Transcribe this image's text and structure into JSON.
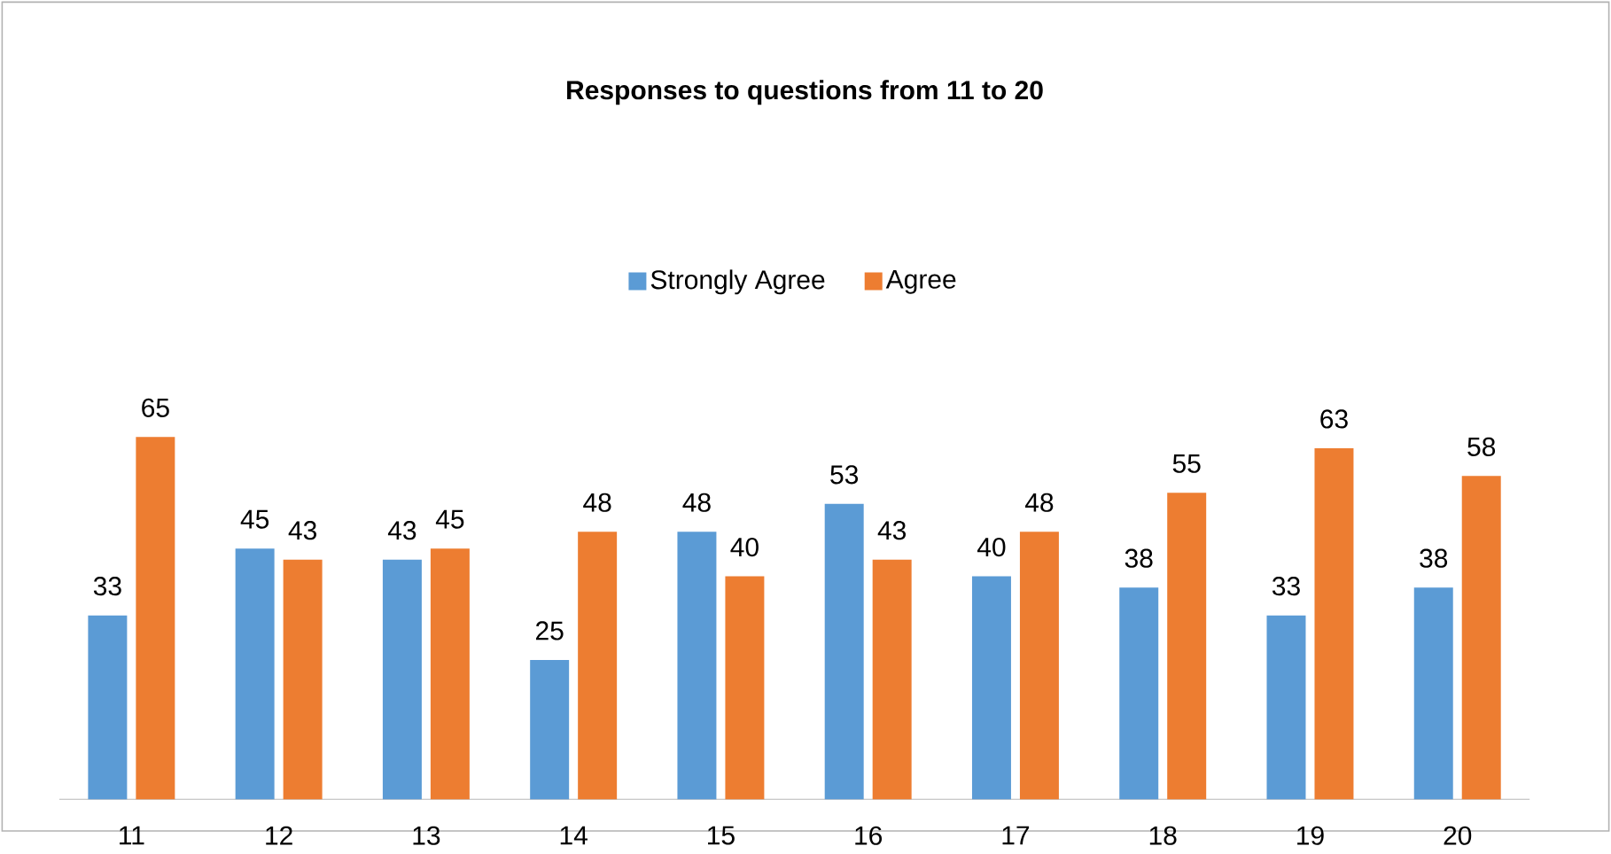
{
  "chart_data": {
    "type": "bar",
    "title": "Responses to questions from 11 to 20",
    "categories": [
      "11",
      "12",
      "13",
      "14",
      "15",
      "16",
      "17",
      "18",
      "19",
      "20"
    ],
    "series": [
      {
        "name": "Strongly Agree",
        "color": "#5b9bd5",
        "values": [
          33,
          45,
          43,
          25,
          48,
          53,
          40,
          38,
          33,
          38
        ]
      },
      {
        "name": "Agree",
        "color": "#ed7d31",
        "values": [
          65,
          43,
          45,
          48,
          40,
          43,
          48,
          55,
          63,
          58
        ]
      }
    ],
    "data_labels": true,
    "legend": "top"
  }
}
